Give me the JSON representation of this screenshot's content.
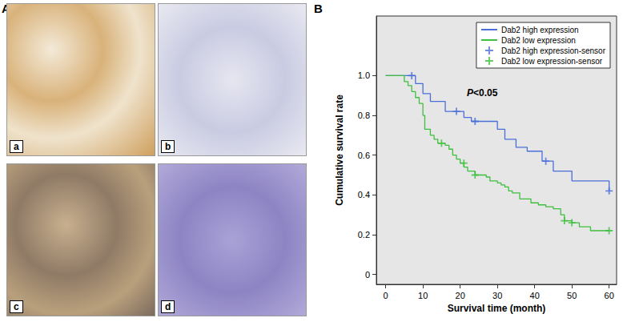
{
  "figure": {
    "panel_labels": [
      "A",
      "B"
    ],
    "image_labels": [
      "a",
      "b",
      "c",
      "d"
    ]
  },
  "chart_data": {
    "type": "line",
    "x_label": "Survival time (month)",
    "y_label": "Cumulative survival rate",
    "xlim": [
      -2.5,
      62
    ],
    "xticks": [
      0,
      10,
      20,
      30,
      40,
      50,
      60
    ],
    "ylim": [
      -0.05,
      1.3
    ],
    "yticks": [
      0,
      0.2,
      0.4,
      0.6,
      0.8,
      {
        "value": 1,
        "label": "1.0"
      }
    ],
    "grid": false,
    "legend": "upper right",
    "annotations": [
      {
        "text": "P<0.05"
      }
    ],
    "series": [
      {
        "name": "Dab2 high expression",
        "type": "line",
        "line_style": "step",
        "color": "#4a6fd8",
        "x": [
          0,
          8,
          10,
          12,
          16,
          21,
          23,
          30,
          32,
          35,
          38,
          42,
          45,
          50,
          60
        ],
        "values": [
          1,
          0.96,
          0.91,
          0.87,
          0.82,
          0.79,
          0.77,
          0.73,
          0.68,
          0.64,
          0.62,
          0.57,
          0.52,
          0.47,
          0.42
        ]
      },
      {
        "name": "Dab2 low expression",
        "type": "line",
        "line_style": "step",
        "color": "#3fbf3f",
        "x": [
          0,
          5,
          6,
          7,
          8,
          9,
          10,
          10.5,
          12,
          13,
          14,
          16,
          17,
          18,
          19,
          20,
          21,
          22,
          24,
          27,
          28,
          30,
          31,
          32,
          33,
          34,
          36,
          39,
          41,
          43,
          45,
          47,
          48,
          50,
          52,
          55,
          60
        ],
        "values": [
          1,
          0.97,
          0.95,
          0.92,
          0.89,
          0.86,
          0.8,
          0.73,
          0.7,
          0.68,
          0.66,
          0.65,
          0.63,
          0.6,
          0.58,
          0.56,
          0.54,
          0.52,
          0.5,
          0.49,
          0.47,
          0.46,
          0.45,
          0.44,
          0.42,
          0.41,
          0.38,
          0.36,
          0.35,
          0.34,
          0.33,
          0.3,
          0.27,
          0.26,
          0.24,
          0.22,
          0.22
        ]
      },
      {
        "name": "Dab2 high expression-sensor",
        "type": "scatter",
        "marker": "plus",
        "color": "#4a6fd8",
        "x": [
          7,
          19,
          24,
          43,
          60
        ],
        "values": [
          1,
          0.82,
          0.77,
          0.57,
          0.42
        ]
      },
      {
        "name": "Dab2 low expression-sensor",
        "type": "scatter",
        "marker": "plus",
        "color": "#3fbf3f",
        "x": [
          15,
          21,
          24,
          48,
          50,
          60
        ],
        "values": [
          0.66,
          0.56,
          0.5,
          0.27,
          0.26,
          0.22
        ]
      }
    ]
  }
}
